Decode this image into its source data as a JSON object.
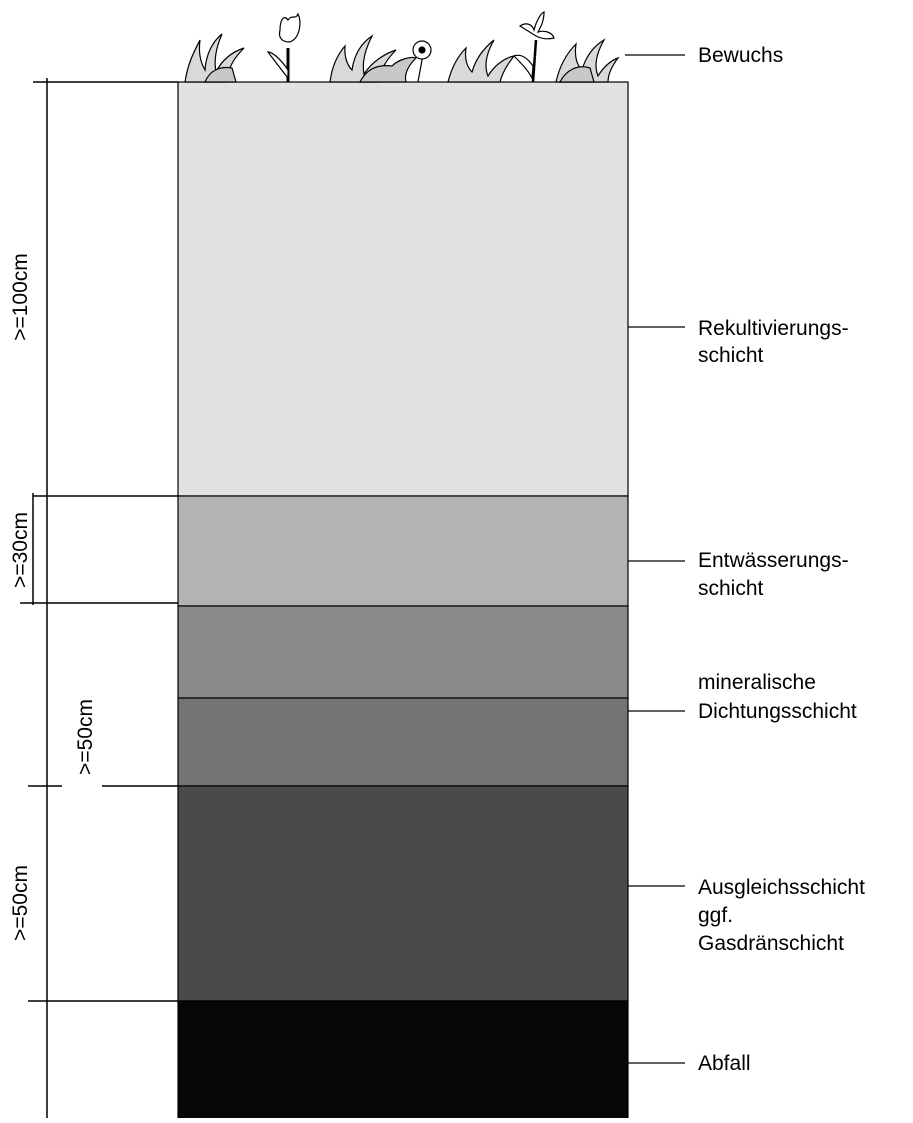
{
  "layers": [
    {
      "id": "rekultivierung",
      "color": "#e2e2e4"
    },
    {
      "id": "entwaesserung",
      "color": "#b3b3b4"
    },
    {
      "id": "mineralisch_oben",
      "color": "#8a8a8a"
    },
    {
      "id": "mineralisch_unten",
      "color": "#747476"
    },
    {
      "id": "ausgleich",
      "color": "#4a4a4a"
    },
    {
      "id": "abfall",
      "color": "#060606"
    }
  ],
  "labels": {
    "bewuchs": "Bewuchs",
    "rekultivierung_1": "Rekultivierungs-",
    "rekultivierung_2": "schicht",
    "entwaesserung_1": "Entwässerungs-",
    "entwaesserung_2": "schicht",
    "dichtung_1": "mineralische",
    "dichtung_2": "Dichtungsschicht",
    "ausgleich_1": "Ausgleichsschicht",
    "ausgleich_2": "ggf.",
    "ausgleich_3": "Gasdränschicht",
    "abfall": "Abfall"
  },
  "dimensions": {
    "d100": ">=100cm",
    "d30": ">=30cm",
    "d50_inner": ">=50cm",
    "d50_outer": ">=50cm"
  },
  "vegetation": [
    "grass-tuft",
    "tulip",
    "grass-tuft",
    "daisy",
    "grass-tuft",
    "lily",
    "grass-tuft"
  ]
}
